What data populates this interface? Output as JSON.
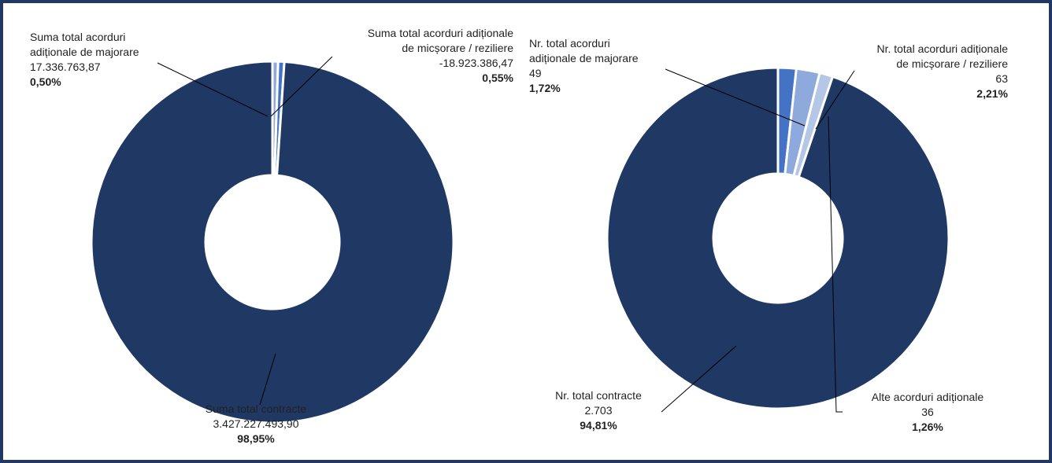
{
  "chart_data": [
    {
      "type": "pie",
      "variant": "donut",
      "title": "",
      "colors": [
        "#1F3864",
        "#4472C4",
        "#8EA9DB"
      ],
      "series": [
        {
          "name": "",
          "values": [
            {
              "label_lines": [
                "Suma total contracte"
              ],
              "value_text": "3.427.227.493,90",
              "percent_text": "98,95%",
              "percent": 98.95,
              "color": "#1F3864"
            },
            {
              "label_lines": [
                "Suma total acorduri",
                "adiționale de majorare"
              ],
              "value_text": "17.336.763,87",
              "percent_text": "0,50%",
              "percent": 0.5,
              "color": "#8EA9DB"
            },
            {
              "label_lines": [
                "Suma total acorduri adiționale",
                "de micșorare / reziliere"
              ],
              "value_text": "-18.923.386,47",
              "percent_text": "0,55%",
              "percent": 0.55,
              "color": "#4472C4"
            }
          ]
        }
      ]
    },
    {
      "type": "pie",
      "variant": "donut",
      "title": "",
      "colors": [
        "#1F3864",
        "#4472C4",
        "#8EA9DB",
        "#B4C7E7"
      ],
      "series": [
        {
          "name": "",
          "values": [
            {
              "label_lines": [
                "Nr. total contracte"
              ],
              "value_text": "2.703",
              "percent_text": "94,81%",
              "percent": 94.81,
              "color": "#1F3864"
            },
            {
              "label_lines": [
                "Nr. total acorduri",
                "adiționale de majorare"
              ],
              "value_text": "49",
              "percent_text": "1,72%",
              "percent": 1.72,
              "color": "#4472C4"
            },
            {
              "label_lines": [
                "Nr. total acorduri adiționale",
                "de micșorare / reziliere"
              ],
              "value_text": "63",
              "percent_text": "2,21%",
              "percent": 2.21,
              "color": "#8EA9DB"
            },
            {
              "label_lines": [
                "Alte acorduri adiționale"
              ],
              "value_text": "36",
              "percent_text": "1,26%",
              "percent": 1.26,
              "color": "#B4C7E7"
            }
          ]
        }
      ]
    }
  ]
}
